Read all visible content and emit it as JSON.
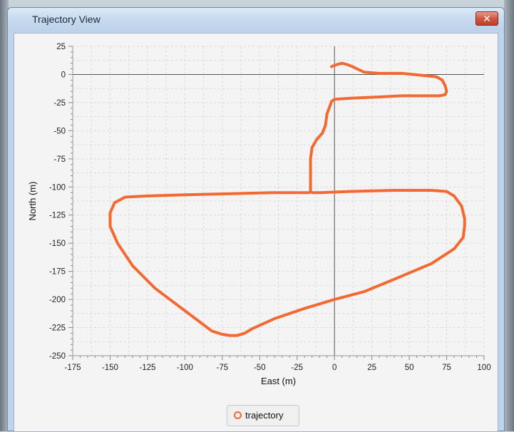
{
  "window": {
    "title": "Trajectory View",
    "close_glyph": "✕"
  },
  "legend": {
    "label": "trajectory"
  },
  "colors": {
    "series": "#f26a32",
    "gridline": "#dadada",
    "zero_axis": "#555555"
  },
  "chart_data": {
    "type": "line",
    "xlabel": "East (m)",
    "ylabel": "North (m)",
    "xlim": [
      -175,
      100
    ],
    "ylim": [
      -250,
      25
    ],
    "xticks": [
      -175,
      -150,
      -125,
      -100,
      -75,
      -50,
      -25,
      0,
      25,
      50,
      75,
      100
    ],
    "yticks": [
      25,
      0,
      -25,
      -50,
      -75,
      -100,
      -125,
      -150,
      -175,
      -200,
      -225,
      -250
    ],
    "grid": true,
    "legend_position": "bottom",
    "series": [
      {
        "name": "trajectory",
        "x": [
          -2,
          2,
          5,
          8,
          12,
          15,
          20,
          30,
          45,
          60,
          68,
          72,
          74,
          75,
          74,
          70,
          60,
          45,
          30,
          12,
          0,
          -2,
          -3,
          -5,
          -6,
          -8,
          -12,
          -15,
          -16,
          -16,
          -16,
          -16,
          -15,
          -10,
          10,
          40,
          65,
          75,
          80,
          85,
          87,
          87,
          86,
          80,
          65,
          40,
          20,
          0,
          -20,
          -40,
          -55,
          -60,
          -65,
          -70,
          -75,
          -82,
          -100,
          -120,
          -135,
          -145,
          -150,
          -150,
          -147,
          -140,
          -125,
          -100,
          -70,
          -40,
          -25,
          -17
        ],
        "y": [
          7,
          9,
          10,
          9,
          7,
          5,
          2,
          1,
          1,
          -1,
          -2,
          -5,
          -10,
          -15,
          -18,
          -19,
          -19,
          -19,
          -20,
          -21,
          -22,
          -24,
          -28,
          -35,
          -45,
          -52,
          -58,
          -65,
          -75,
          -85,
          -95,
          -104,
          -105,
          -105,
          -104,
          -103,
          -103,
          -104,
          -108,
          -117,
          -128,
          -135,
          -145,
          -155,
          -168,
          -182,
          -193,
          -200,
          -208,
          -217,
          -226,
          -230,
          -232,
          -232,
          -231,
          -228,
          -210,
          -190,
          -170,
          -150,
          -135,
          -123,
          -114,
          -109,
          -108,
          -107,
          -106,
          -105,
          -105,
          -105
        ]
      }
    ]
  }
}
